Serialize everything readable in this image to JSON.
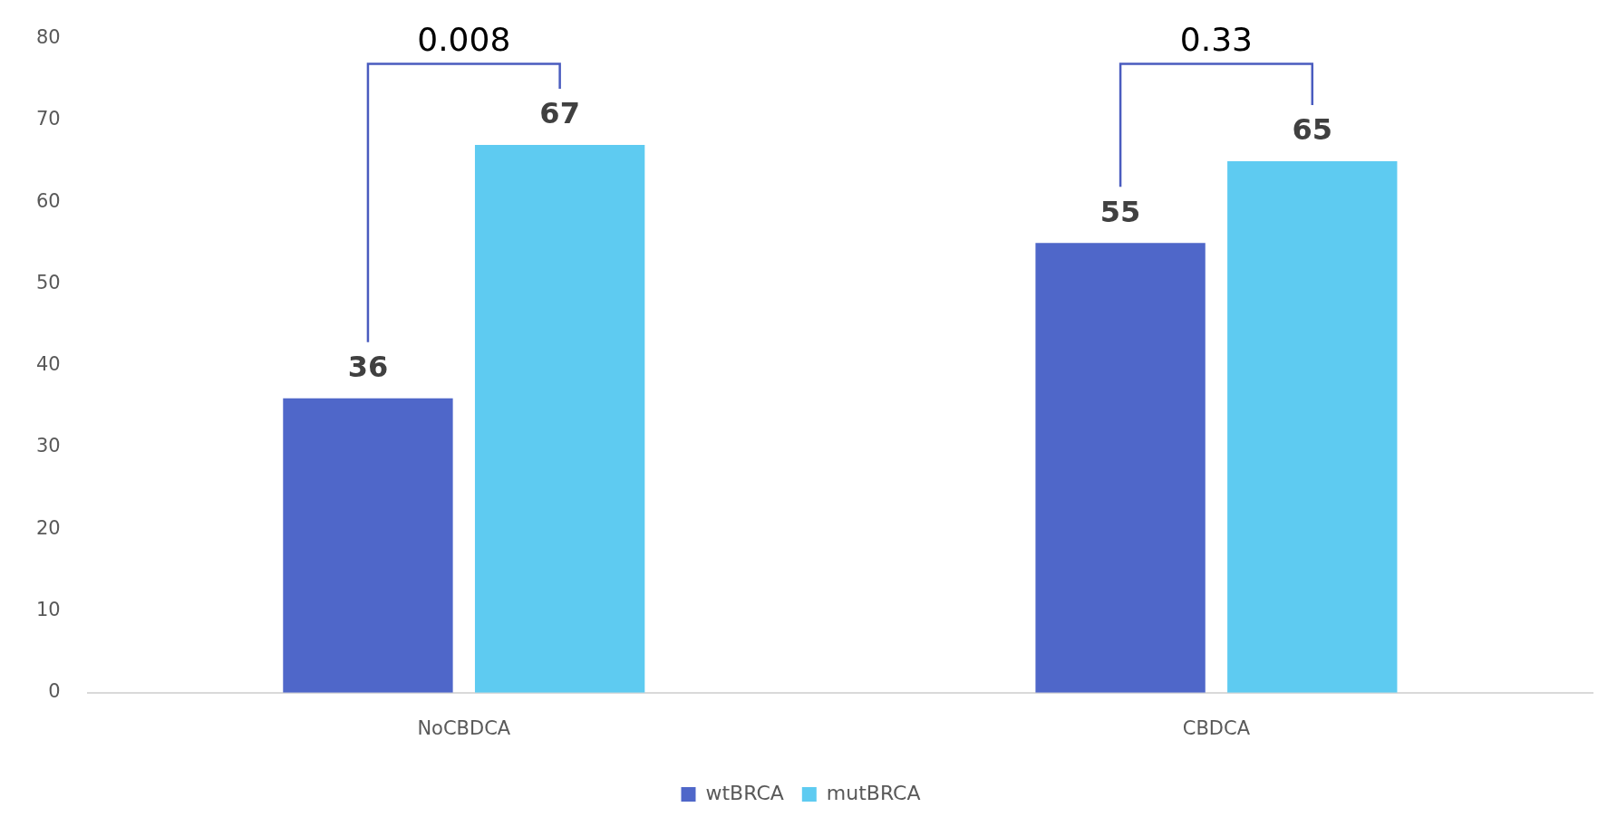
{
  "chart_data": {
    "type": "bar",
    "categories": [
      "NoCBDCA",
      "CBDCA"
    ],
    "series": [
      {
        "name": "wtBRCA",
        "color": "#4f67c9",
        "values": [
          36,
          55
        ]
      },
      {
        "name": "mutBRCA",
        "color": "#5ecbf1",
        "values": [
          67,
          65
        ]
      }
    ],
    "ylim": [
      0,
      80
    ],
    "yticks": [
      0,
      10,
      20,
      30,
      40,
      50,
      60,
      70,
      80
    ],
    "grid": false,
    "legend": "bottom",
    "data_labels": true,
    "annotations": [
      "0.008",
      "0.33"
    ]
  }
}
